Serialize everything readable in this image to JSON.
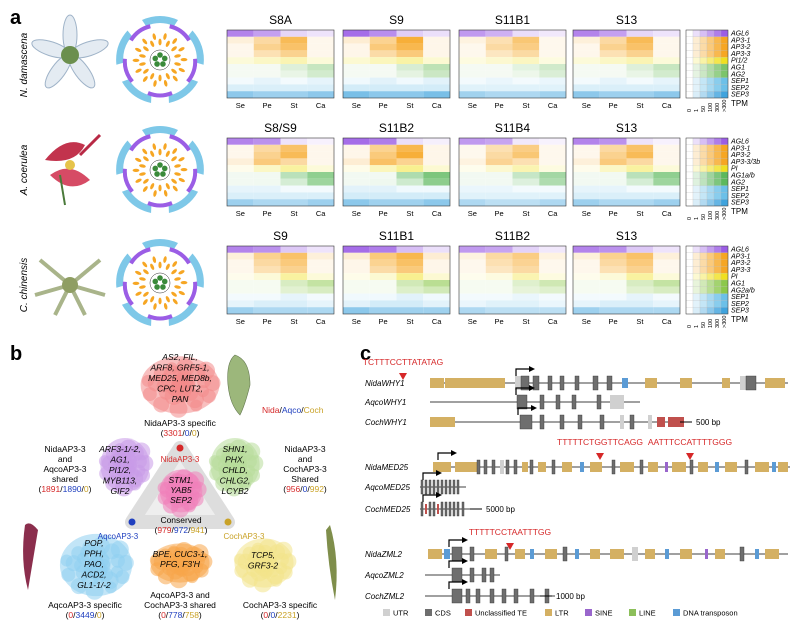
{
  "panel_labels": {
    "a": "a",
    "b": "b",
    "c": "c"
  },
  "species_labels": [
    "N. damascena",
    "A. coerulea",
    "C. chinensis"
  ],
  "heatmap_columns": [
    "Se",
    "Pe",
    "St",
    "Ca"
  ],
  "tpm_ticks": [
    "0",
    "1",
    "50",
    "100",
    "300",
    ">300"
  ],
  "tpm_label": "TPM",
  "heatmap_rows": [
    {
      "stages": [
        "S8A",
        "S9",
        "S11B1",
        "S13"
      ],
      "genes": [
        "AGL6",
        "AP3-1",
        "AP3-2",
        "AP3-3",
        "PI1/2",
        "AG1",
        "AG2",
        "SEP1",
        "SEP2",
        "SEP3"
      ],
      "colors": [
        "#9b5de5",
        "#f6a623",
        "#f6a623",
        "#f6a623",
        "#f0e020",
        "#7cc46b",
        "#7cc46b",
        "#6cc0e8",
        "#6cc0e8",
        "#3fa3dd"
      ]
    },
    {
      "stages": [
        "S8/S9",
        "S11B2",
        "S11B4",
        "S13"
      ],
      "genes": [
        "AGL6",
        "AP3-1",
        "AP3-2",
        "AP3-3/3b",
        "PI",
        "AG1a/b",
        "AG2",
        "SEP1",
        "SEP2",
        "SEP3"
      ],
      "colors": [
        "#9b5de5",
        "#f6a623",
        "#f6a623",
        "#f6a623",
        "#f0e020",
        "#5cb85c",
        "#5cb85c",
        "#6cc0e8",
        "#6cc0e8",
        "#3fa3dd"
      ]
    },
    {
      "stages": [
        "S9",
        "S11B1",
        "S11B2",
        "S13"
      ],
      "genes": [
        "AGL6",
        "AP3-1",
        "AP3-2",
        "AP3-3",
        "PI",
        "AG1",
        "AG2a/b",
        "SEP1",
        "SEP2",
        "SEP3"
      ],
      "colors": [
        "#9b5de5",
        "#f6a623",
        "#f6a623",
        "#f6a623",
        "#f0e020",
        "#8cc84b",
        "#8cc84b",
        "#6cc0e8",
        "#6cc0e8",
        "#3fa3dd"
      ]
    }
  ],
  "panel_b": {
    "legend": {
      "nida": "Nida",
      "aqco": "Aqco",
      "coch": "Coch",
      "sep": "/"
    },
    "nodes": {
      "nida": "NidaAP3-3",
      "aqco": "AqcoAP3-3",
      "coch": "CochAP3-3"
    },
    "groups": [
      {
        "id": "nida-specific",
        "genes": [
          "AS2, FIL,",
          "ARF8, GRF5-1,",
          "MED25, MED8b,",
          "CPC, LUT2,",
          "PAN"
        ],
        "title": [
          "NidaAP3-3 specific"
        ],
        "counts": [
          "3301",
          "0",
          "0"
        ]
      },
      {
        "id": "nida-aqco",
        "genes": [
          "ARF3-1/-2,",
          "AG1,",
          "PI1/2,",
          "MYB113,",
          "GIF2"
        ],
        "title": [
          "NidaAP3-3",
          "and",
          "AqcoAP3-3",
          "shared"
        ],
        "counts": [
          "1891",
          "1890",
          "0"
        ]
      },
      {
        "id": "nida-coch",
        "genes": [
          "SHN1,",
          "PHX,",
          "CHLD,",
          "CHLG2,",
          "LCYB2"
        ],
        "title": [
          "NidaAP3-3",
          "and",
          "CochAP3-3",
          "Shared"
        ],
        "counts": [
          "956",
          "0",
          "992"
        ]
      },
      {
        "id": "conserved",
        "genes": [
          "STM1,",
          "YAB5",
          "SEP2"
        ],
        "title": [
          "Conserved"
        ],
        "counts": [
          "979",
          "972",
          "941"
        ]
      },
      {
        "id": "aqco-specific",
        "genes": [
          "POP,",
          "PPH,",
          "PAO,",
          "ACD2,",
          "GL1-1/-2"
        ],
        "title": [
          "AqcoAP3-3 specific"
        ],
        "counts": [
          "0",
          "3449",
          "0"
        ]
      },
      {
        "id": "aqco-coch",
        "genes": [
          "BPE, CUC3-1,",
          "PFG, F3'H"
        ],
        "title": [
          "AqcoAP3-3 and",
          "CochAP3-3 shared"
        ],
        "counts": [
          "0",
          "778",
          "758"
        ]
      },
      {
        "id": "coch-specific",
        "genes": [
          "TCP5,",
          "GRF3-2"
        ],
        "title": [
          "CochAP3-3 specific"
        ],
        "counts": [
          "0",
          "0",
          "2231"
        ]
      }
    ]
  },
  "panel_c": {
    "genes": [
      "NidaWHY1",
      "AqcoWHY1",
      "CochWHY1",
      "NidaMED25",
      "AqcoMED25",
      "CochMED25",
      "NidaZML2",
      "AqcoZML2",
      "CochZML2"
    ],
    "motifs": [
      "TCTTTCCTTATATAG",
      "TTTTTCTGGTTCAGG",
      "AATTTCCATTTTGGG",
      "TTTTTCCTAATTTGG"
    ],
    "scales": [
      "500 bp",
      "5000 bp",
      "1000 bp"
    ],
    "legend": [
      {
        "label": "UTR",
        "color": "#d0d0d0"
      },
      {
        "label": "CDS",
        "color": "#6e6e6e"
      },
      {
        "label": "Unclassified TE",
        "color": "#c0504d"
      },
      {
        "label": "LTR",
        "color": "#d4b063"
      },
      {
        "label": "SINE",
        "color": "#9966cc"
      },
      {
        "label": "LINE",
        "color": "#8cbf5a"
      },
      {
        "label": "DNA transposon",
        "color": "#5b9bd5"
      }
    ]
  }
}
